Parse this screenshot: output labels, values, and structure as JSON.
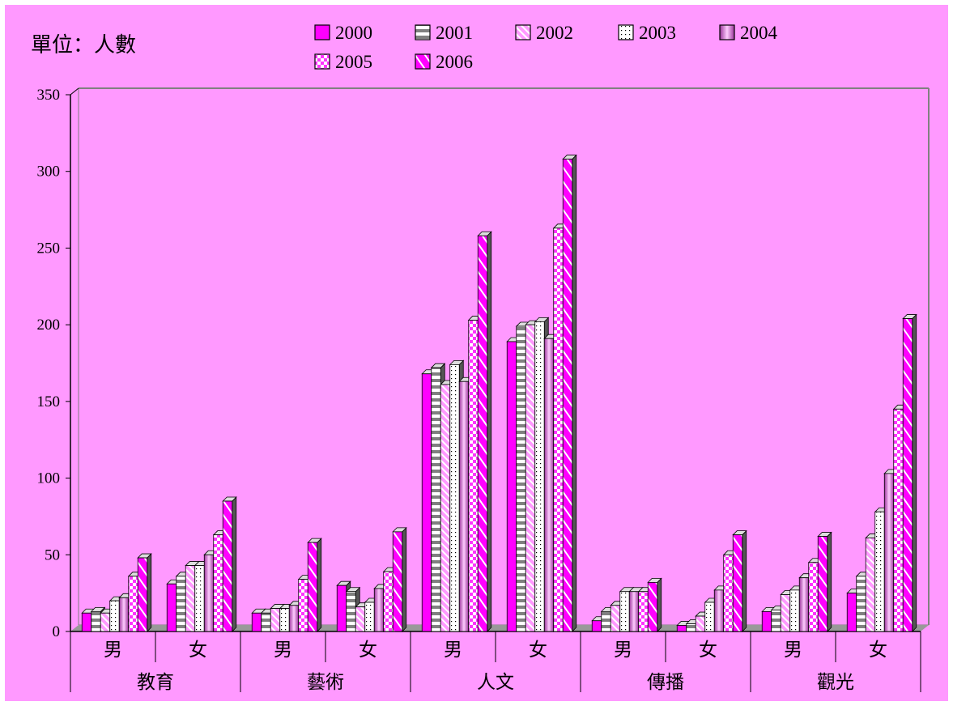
{
  "chart_data": {
    "type": "bar",
    "unit_label": "單位：人數",
    "y_ticks": [
      "0",
      "50",
      "100",
      "150",
      "200",
      "250",
      "300",
      "350"
    ],
    "ylim": [
      0,
      350
    ],
    "groups": [
      {
        "name": "教育",
        "subs": [
          "男",
          "女"
        ]
      },
      {
        "name": "藝術",
        "subs": [
          "男",
          "女"
        ]
      },
      {
        "name": "人文",
        "subs": [
          "男",
          "女"
        ]
      },
      {
        "name": "傳播",
        "subs": [
          "男",
          "女"
        ]
      },
      {
        "name": "觀光",
        "subs": [
          "男",
          "女"
        ]
      }
    ],
    "series": [
      {
        "name": "2000",
        "color": "#ff00ff",
        "values": [
          12,
          31,
          12,
          30,
          168,
          189,
          7,
          4,
          13,
          25
        ]
      },
      {
        "name": "2001",
        "color": "#808080",
        "values": [
          13,
          36,
          12,
          26,
          172,
          199,
          13,
          5,
          14,
          36
        ]
      },
      {
        "name": "2002",
        "color": "#ff99ff",
        "values": [
          12,
          43,
          15,
          16,
          161,
          200,
          17,
          10,
          24,
          61
        ]
      },
      {
        "name": "2003",
        "color": "#ffffff",
        "values": [
          20,
          43,
          15,
          19,
          174,
          202,
          26,
          19,
          27,
          78
        ]
      },
      {
        "name": "2004",
        "color": "#cc33cc",
        "values": [
          22,
          50,
          17,
          28,
          163,
          191,
          26,
          27,
          35,
          103
        ]
      },
      {
        "name": "2005",
        "color": "#ff66ff",
        "values": [
          36,
          63,
          34,
          39,
          203,
          263,
          26,
          50,
          45,
          145
        ]
      },
      {
        "name": "2006",
        "color": "#ff00ff",
        "values": [
          48,
          85,
          58,
          65,
          258,
          308,
          32,
          63,
          62,
          204
        ]
      }
    ],
    "legend_position": "top",
    "grid": false,
    "background": "#ff99ff"
  }
}
